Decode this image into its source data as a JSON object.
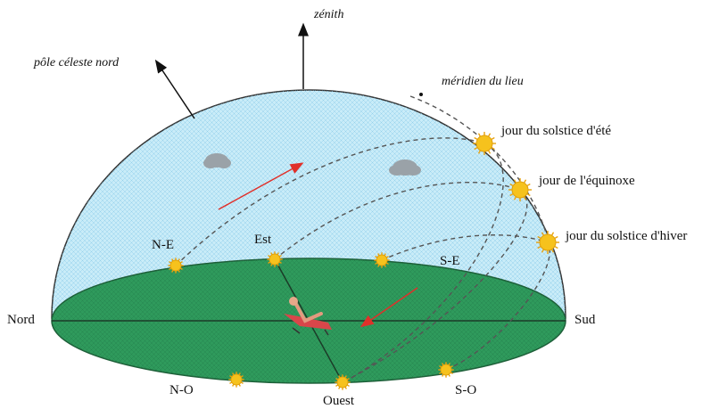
{
  "labels": {
    "zenith": "zénith",
    "pole": "pôle céleste nord",
    "meridian": "méridien du lieu",
    "summer": "jour du solstice d'été",
    "equinox": "jour de l'équinoxe",
    "winter": "jour du solstice d'hiver",
    "nord": "Nord",
    "sud": "Sud",
    "ne": "N-E",
    "est": "Est",
    "se": "S-E",
    "no": "N-O",
    "ouest": "Ouest",
    "so": "S-O"
  },
  "colors": {
    "sky": "#c9ecf8",
    "ground": "#2f9a5c",
    "ground_edge": "#1d5e38",
    "sun": "#f6c21d",
    "path": "#555555",
    "arrow_red": "#e0302a"
  }
}
